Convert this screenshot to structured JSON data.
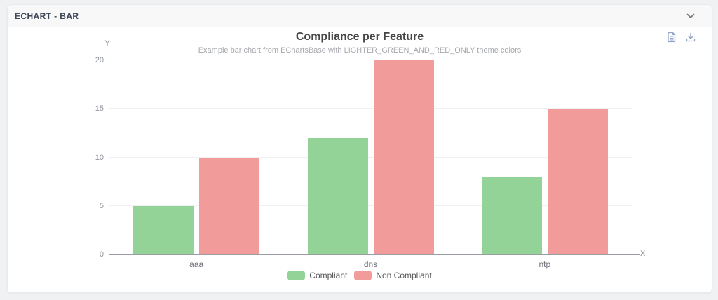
{
  "panel": {
    "header": {
      "title": "ECHART - BAR",
      "collapse_icon": "chevron-down-icon"
    },
    "toolbox": {
      "icon_color": "#93a5c8",
      "icons": [
        "data-view-icon",
        "save-as-image-icon"
      ]
    }
  },
  "chart_data": {
    "type": "bar",
    "title": "Compliance per Feature",
    "subtitle": "Example bar chart from EChartsBase with LIGHTER_GREEN_AND_RED_ONLY theme colors",
    "categories": [
      "aaa",
      "dns",
      "ntp"
    ],
    "series": [
      {
        "name": "Compliant",
        "color": "#93d398",
        "values": [
          5,
          12,
          8
        ]
      },
      {
        "name": "Non Compliant",
        "color": "#f29b9b",
        "values": [
          10,
          20,
          15
        ]
      }
    ],
    "xlabel": "X",
    "ylabel": "Y",
    "ylim": [
      0,
      20
    ],
    "yticks": [
      0,
      5,
      10,
      15,
      20
    ],
    "grid": true,
    "legend_position": "bottom"
  }
}
